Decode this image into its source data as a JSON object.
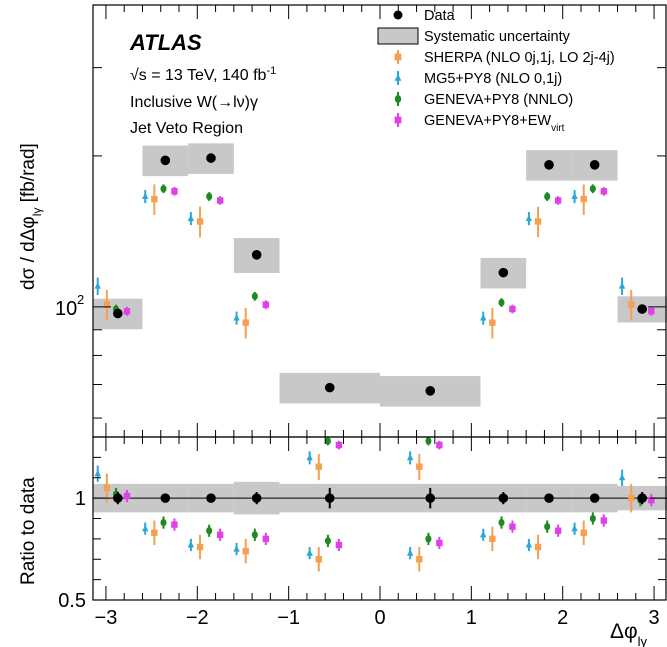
{
  "chart_data": {
    "type": "scatter",
    "x_edges": [
      -3.1416,
      -2.6,
      -2.1,
      -1.6,
      -1.1,
      0,
      1.1,
      1.6,
      2.1,
      2.6,
      3.1416
    ],
    "x_centers": [
      -2.87,
      -2.35,
      -1.85,
      -1.35,
      -0.55,
      0.55,
      1.35,
      1.85,
      2.35,
      2.87
    ],
    "experiment": "ATLAS",
    "info_lines": {
      "energy_prefix": "√s = 13 TeV, 140 fb",
      "energy_sup": "-1",
      "process": "Inclusive W(→lν)γ",
      "region": "Jet Veto Region"
    },
    "ylabel": {
      "text": "dσ / dΔφ",
      "sub": "lγ",
      "unit": "[fb/rad]"
    },
    "ratio_ylabel": "Ratio to data",
    "xlabel": {
      "text": "Δφ",
      "sub": "lγ"
    },
    "x_ticks": [
      -3,
      -2,
      -1,
      0,
      1,
      2,
      3
    ],
    "x_tick_labels": [
      "−3",
      "−2",
      "−1",
      "0",
      "1",
      "2",
      "3"
    ],
    "top_ylog": true,
    "top_ylim": [
      55,
      400
    ],
    "top_y_tick_label": {
      "base": "10",
      "exp": "2",
      "value": 100
    },
    "ratio_ylim": [
      0.5,
      1.3
    ],
    "ratio_y_ticks": [
      0.5,
      1
    ],
    "ratio_y_tick_labels": [
      "0.5",
      "1"
    ],
    "legend": [
      {
        "key": "data",
        "label": "Data"
      },
      {
        "key": "syst",
        "label": "Systematic uncertainty"
      },
      {
        "key": "sherpa",
        "label": "SHERPA (NLO 0j,1j, LO 2j-4j)"
      },
      {
        "key": "mg5",
        "label": "MG5+PY8 (NLO 0,1j)"
      },
      {
        "key": "geneva",
        "label": "GENEVA+PY8 (NNLO)"
      },
      {
        "key": "genevaew",
        "label": "GENEVA+PY8+EW",
        "sub": "virt"
      }
    ],
    "colors": {
      "data": "#000000",
      "syst": "#c8c8c8",
      "sherpa": "#f5a050",
      "mg5": "#2aa6d8",
      "geneva": "#1f8a1f",
      "genevaew": "#e040e8"
    },
    "data": {
      "values": [
        97,
        196,
        198,
        127,
        69,
        68,
        117,
        192,
        192,
        99
      ],
      "syst_frac": [
        0.07,
        0.07,
        0.07,
        0.08,
        0.07,
        0.07,
        0.07,
        0.07,
        0.07,
        0.06
      ]
    },
    "series": [
      {
        "key": "sherpa",
        "values": [
          101,
          164,
          148,
          93,
          48,
          48,
          93,
          148,
          164,
          101
        ],
        "err_frac": [
          0.07,
          0.07,
          0.07,
          0.07,
          0.06,
          0.06,
          0.07,
          0.07,
          0.07,
          0.07
        ],
        "ratio": [
          1.05,
          0.83,
          0.76,
          0.74,
          0.7,
          0.7,
          0.8,
          0.76,
          0.83,
          1.0
        ],
        "ratio_err": [
          0.07,
          0.06,
          0.06,
          0.06,
          0.06,
          0.06,
          0.06,
          0.06,
          0.06,
          0.07
        ]
      },
      {
        "key": "mg5",
        "values": [
          110,
          166,
          150,
          95,
          50,
          50,
          95,
          150,
          166,
          110
        ],
        "err_frac": [
          0.04,
          0.03,
          0.03,
          0.03,
          0.03,
          0.03,
          0.03,
          0.03,
          0.03,
          0.04
        ],
        "ratio": [
          1.12,
          0.85,
          0.77,
          0.75,
          0.73,
          0.73,
          0.82,
          0.77,
          0.85,
          1.1
        ],
        "ratio_err": [
          0.04,
          0.03,
          0.03,
          0.03,
          0.03,
          0.03,
          0.03,
          0.03,
          0.03,
          0.04
        ]
      },
      {
        "key": "geneva",
        "values": [
          99,
          172,
          166,
          105,
          54,
          54,
          102,
          166,
          172,
          99
        ],
        "err_frac": [
          0.02,
          0.02,
          0.02,
          0.02,
          0.02,
          0.02,
          0.02,
          0.02,
          0.02,
          0.02
        ],
        "ratio": [
          1.02,
          0.88,
          0.84,
          0.82,
          0.79,
          0.8,
          0.88,
          0.86,
          0.9,
          0.99
        ],
        "ratio_err": [
          0.03,
          0.03,
          0.03,
          0.03,
          0.03,
          0.03,
          0.03,
          0.03,
          0.03,
          0.03
        ]
      },
      {
        "key": "genevaew",
        "values": [
          98,
          170,
          163,
          101,
          53,
          53,
          99,
          163,
          170,
          98
        ],
        "err_frac": [
          0.02,
          0.02,
          0.02,
          0.02,
          0.02,
          0.02,
          0.02,
          0.02,
          0.02,
          0.02
        ],
        "ratio": [
          1.01,
          0.87,
          0.82,
          0.8,
          0.77,
          0.78,
          0.86,
          0.84,
          0.89,
          0.99
        ],
        "ratio_err": [
          0.03,
          0.03,
          0.03,
          0.03,
          0.03,
          0.03,
          0.03,
          0.03,
          0.03,
          0.03
        ]
      }
    ],
    "data_ratio_err": [
      0.03,
      0.02,
      0.02,
      0.03,
      0.05,
      0.05,
      0.03,
      0.02,
      0.02,
      0.03
    ]
  }
}
